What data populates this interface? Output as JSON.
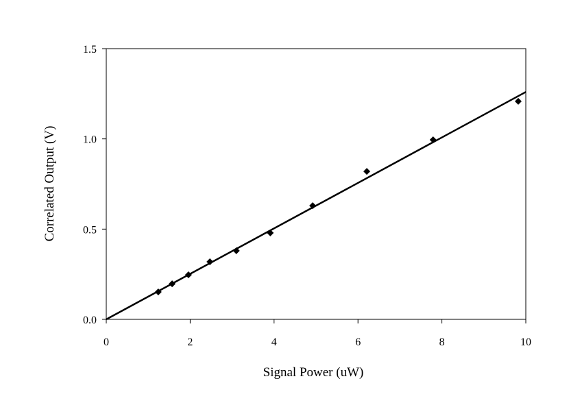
{
  "chart_data": {
    "type": "scatter",
    "xlabel": "Signal Power (uW)",
    "ylabel": "Correlated Output (V)",
    "series": [
      {
        "kind": "markers",
        "color": "#000000",
        "x": [
          1.24,
          1.57,
          1.96,
          2.47,
          3.1,
          3.91,
          4.92,
          6.21,
          7.79,
          9.82
        ],
        "values": [
          0.152,
          0.197,
          0.247,
          0.319,
          0.38,
          0.479,
          0.63,
          0.82,
          0.995,
          1.208
        ]
      },
      {
        "kind": "line",
        "color": "#000000",
        "x": [
          0,
          10
        ],
        "values": [
          0,
          1.26
        ]
      }
    ],
    "xlim": [
      0,
      10
    ],
    "xticks": [
      0,
      2,
      4,
      6,
      8,
      10
    ],
    "ylim": [
      0,
      1.5
    ],
    "yticks": [
      {
        "value": 0,
        "label": "0.0"
      },
      0.5,
      {
        "value": 1,
        "label": "1.0"
      },
      1.5
    ]
  }
}
